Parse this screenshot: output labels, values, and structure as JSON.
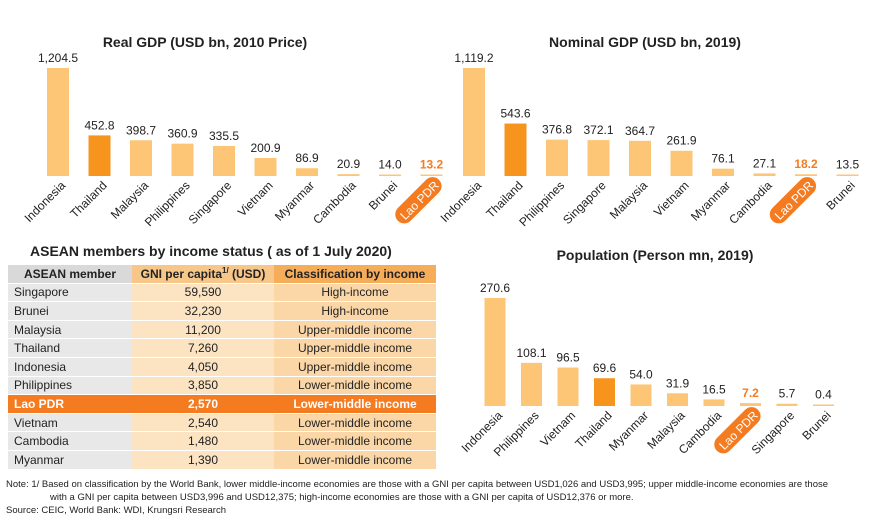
{
  "colors": {
    "bar": "#fdc677",
    "highlight_bar": "#f7941d",
    "lao_orange": "#f47b20",
    "text": "#222222"
  },
  "chart_data": [
    {
      "type": "bar",
      "title": "Real GDP (USD bn, 2010 Price)",
      "categories": [
        "Indonesia",
        "Thailand",
        "Malaysia",
        "Philippines",
        "Singapore",
        "Vietnam",
        "Myanmar",
        "Cambodia",
        "Brunei",
        "Lao PDR"
      ],
      "values": [
        1204.5,
        452.8,
        398.7,
        360.9,
        335.5,
        200.9,
        86.9,
        20.9,
        14.0,
        13.2
      ],
      "value_labels": [
        "1,204.5",
        "452.8",
        "398.7",
        "360.9",
        "335.5",
        "200.9",
        "86.9",
        "20.9",
        "14.0",
        "13.2"
      ],
      "highlight_bar": "Thailand",
      "highlight_label": "Lao PDR"
    },
    {
      "type": "bar",
      "title": "Nominal GDP (USD bn, 2019)",
      "categories": [
        "Indonesia",
        "Thailand",
        "Philippines",
        "Singapore",
        "Malaysia",
        "Vietnam",
        "Myanmar",
        "Cambodia",
        "Lao PDR",
        "Brunei"
      ],
      "values": [
        1119.2,
        543.6,
        376.8,
        372.1,
        364.7,
        261.9,
        76.1,
        27.1,
        18.2,
        13.5
      ],
      "value_labels": [
        "1,119.2",
        "543.6",
        "376.8",
        "372.1",
        "364.7",
        "261.9",
        "76.1",
        "27.1",
        "18.2",
        "13.5"
      ],
      "highlight_bar": "Thailand",
      "highlight_label": "Lao PDR"
    },
    {
      "type": "bar",
      "title": "Population (Person mn, 2019)",
      "categories": [
        "Indonesia",
        "Philippines",
        "Vietnam",
        "Thailand",
        "Myanmar",
        "Malaysia",
        "Cambodia",
        "Lao PDR",
        "Singapore",
        "Brunei"
      ],
      "values": [
        270.6,
        108.1,
        96.5,
        69.6,
        54.0,
        31.9,
        16.5,
        7.2,
        5.7,
        0.4
      ],
      "value_labels": [
        "270.6",
        "108.1",
        "96.5",
        "69.6",
        "54.0",
        "31.9",
        "16.5",
        "7.2",
        "5.7",
        "0.4"
      ],
      "highlight_bar": "Thailand",
      "highlight_label": "Lao PDR"
    },
    {
      "type": "table",
      "title": "ASEAN members by income status ( as of 1 July 2020)",
      "headers": [
        "ASEAN member",
        "GNI per capita",
        "1/",
        " (USD)",
        "Classification by income"
      ],
      "rows": [
        [
          "Singapore",
          "59,590",
          "High-income"
        ],
        [
          "Brunei",
          "32,230",
          "High-income"
        ],
        [
          "Malaysia",
          "11,200",
          "Upper-middle income"
        ],
        [
          "Thailand",
          "7,260",
          "Upper-middle income"
        ],
        [
          "Indonesia",
          "4,050",
          "Upper-middle income"
        ],
        [
          "Philippines",
          "3,850",
          "Lower-middle income"
        ],
        [
          "Lao PDR",
          "2,570",
          "Lower-middle income"
        ],
        [
          "Vietnam",
          "2,540",
          "Lower-middle income"
        ],
        [
          "Cambodia",
          "1,480",
          "Lower-middle income"
        ],
        [
          "Myanmar",
          "1,390",
          "Lower-middle income"
        ]
      ],
      "highlight_row": "Lao PDR"
    }
  ],
  "notes": {
    "line1": "Note:   1/ Based on classification by the World Bank, lower middle-income economies are those with a GNI per capita between USD1,026 and USD3,995; upper middle-income economies are those",
    "line2": "with a GNI per capita between USD3,996 and USD12,375; high-income economies are those with a GNI per capita of USD12,376 or more.",
    "source": "Source: CEIC, World Bank: WDI, Krungsri Research"
  }
}
